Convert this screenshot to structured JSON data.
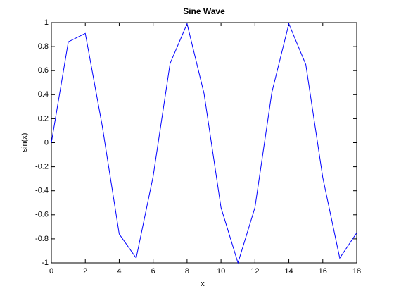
{
  "chart_data": {
    "type": "line",
    "title": "Sine Wave",
    "x_label": "x",
    "y_label": "sin(x)",
    "x": [
      0,
      1,
      2,
      3,
      4,
      5,
      6,
      7,
      8,
      9,
      10,
      11,
      12,
      13,
      14,
      15,
      16,
      17,
      18
    ],
    "series": [
      {
        "name": "sin(x)",
        "color": "#0000ff",
        "values": [
          0,
          0.84,
          0.91,
          0.14,
          -0.76,
          -0.96,
          -0.28,
          0.66,
          0.99,
          0.41,
          -0.54,
          -1.0,
          -0.54,
          0.42,
          0.99,
          0.65,
          -0.29,
          -0.96,
          -0.75
        ]
      }
    ],
    "xlim": [
      0,
      18
    ],
    "xticks": [
      0,
      2,
      4,
      6,
      8,
      10,
      12,
      14,
      16,
      18
    ],
    "ylim": [
      -1,
      1
    ],
    "yticks": [
      -1,
      -0.8,
      -0.6,
      -0.4,
      -0.2,
      0,
      0.2,
      0.4,
      0.6,
      0.8,
      1
    ],
    "grid": false
  }
}
